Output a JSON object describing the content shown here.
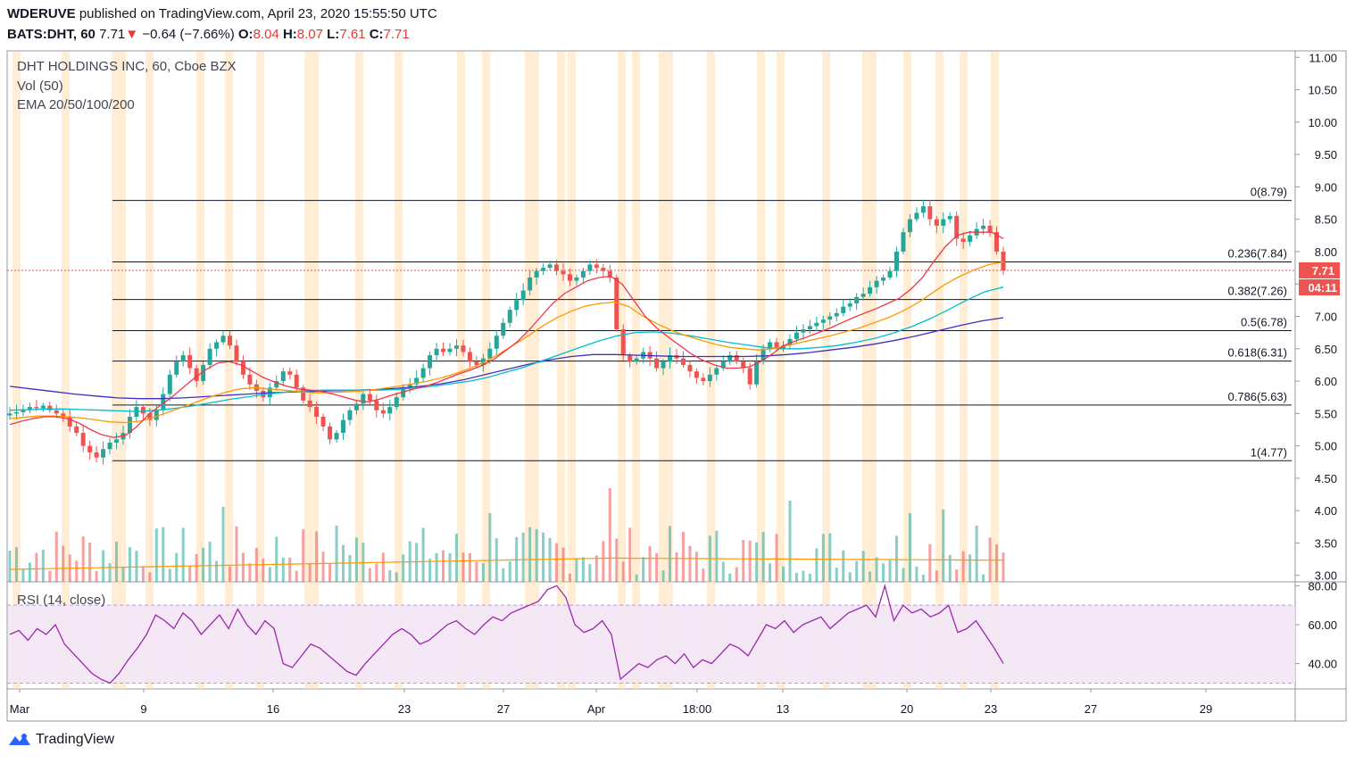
{
  "header": {
    "publisher": "WDERUVE",
    "published_text": "published on TradingView.com, April 23, 2020 15:55:50 UTC",
    "symbol": "BATS:DHT, 60",
    "last": "7.71",
    "change_arrow": "▼",
    "change": "−0.64 (−7.66%)",
    "o_label": "O:",
    "o_value": "8.04",
    "h_label": "H:",
    "h_value": "8.07",
    "l_label": "L:",
    "l_value": "7.61",
    "c_label": "C:",
    "c_value": "7.71"
  },
  "legend": {
    "title": "DHT HOLDINGS INC, 60, Cboe BZX",
    "volume": "Vol (50)",
    "ema": "EMA 20/50/100/200",
    "rsi": "RSI (14, close)"
  },
  "branding": {
    "name": "TradingView"
  },
  "colors": {
    "up": "#26a69a",
    "down": "#ef5350",
    "ema20": "#f23645",
    "ema50": "#ff9800",
    "ema100": "#00bcd4",
    "ema200": "#3f2fbf",
    "rsi": "#9c27b0",
    "rsi_band": "#f3e5f5",
    "session": "#ffe0b2",
    "last_price_tag": "#ef5350",
    "vol_ma": "#ff9800"
  },
  "chart_data": {
    "type": "candlestick",
    "title": "DHT HOLDINGS INC, 60, Cboe BZX",
    "price_axis": [
      "11.00",
      "10.50",
      "10.00",
      "9.50",
      "9.00",
      "8.50",
      "8.00",
      "7.50",
      "7.00",
      "6.50",
      "6.00",
      "5.50",
      "5.00",
      "4.50",
      "4.00",
      "3.50",
      "3.00"
    ],
    "price_ylim": [
      2.9,
      11.1
    ],
    "rsi_axis": [
      "80.00",
      "60.00",
      "40.00"
    ],
    "rsi_ylim": [
      27,
      82
    ],
    "rsi_band": [
      30,
      70
    ],
    "time_axis": [
      "Mar",
      "9",
      "16",
      "23",
      "27",
      "Apr",
      "18:00",
      "13",
      "20",
      "23",
      "27",
      "29"
    ],
    "last_price": "7.71",
    "countdown": "04:11",
    "fib_levels": [
      {
        "label": "0(8.79)",
        "value": 8.79
      },
      {
        "label": "0.236(7.84)",
        "value": 7.84
      },
      {
        "label": "0.382(7.26)",
        "value": 7.26
      },
      {
        "label": "0.5(6.78)",
        "value": 6.78
      },
      {
        "label": "0.618(6.31)",
        "value": 6.31
      },
      {
        "label": "0.786(5.63)",
        "value": 5.63
      },
      {
        "label": "1(4.77)",
        "value": 4.77
      }
    ],
    "price_path": [
      5.5,
      5.52,
      5.55,
      5.6,
      5.58,
      5.62,
      5.55,
      5.5,
      5.45,
      5.3,
      5.2,
      5.0,
      4.9,
      4.82,
      4.95,
      5.05,
      5.1,
      5.2,
      5.45,
      5.6,
      5.5,
      5.4,
      5.55,
      5.8,
      6.1,
      6.3,
      6.4,
      6.2,
      6.0,
      6.25,
      6.5,
      6.6,
      6.7,
      6.55,
      6.3,
      6.1,
      5.95,
      5.85,
      5.75,
      5.9,
      6.0,
      6.15,
      6.1,
      5.9,
      5.7,
      5.6,
      5.45,
      5.3,
      5.1,
      5.2,
      5.4,
      5.55,
      5.65,
      5.8,
      5.7,
      5.55,
      5.5,
      5.6,
      5.75,
      5.9,
      5.95,
      6.05,
      6.2,
      6.4,
      6.5,
      6.45,
      6.5,
      6.55,
      6.45,
      6.3,
      6.25,
      6.35,
      6.5,
      6.7,
      6.9,
      7.1,
      7.25,
      7.4,
      7.6,
      7.7,
      7.75,
      7.8,
      7.7,
      7.65,
      7.55,
      7.6,
      7.7,
      7.8,
      7.75,
      7.7,
      7.6,
      6.8,
      6.4,
      6.3,
      6.35,
      6.45,
      6.35,
      6.2,
      6.3,
      6.4,
      6.35,
      6.25,
      6.15,
      6.05,
      6.0,
      6.1,
      6.2,
      6.3,
      6.4,
      6.3,
      6.2,
      5.95,
      6.3,
      6.5,
      6.6,
      6.5,
      6.55,
      6.65,
      6.75,
      6.8,
      6.85,
      6.9,
      6.95,
      7.0,
      7.05,
      7.15,
      7.2,
      7.3,
      7.35,
      7.45,
      7.55,
      7.6,
      7.7,
      8.0,
      8.3,
      8.5,
      8.6,
      8.7,
      8.5,
      8.4,
      8.5,
      8.55,
      8.2,
      8.15,
      8.25,
      8.35,
      8.4,
      8.3,
      8.0,
      7.71
    ],
    "ema20": [
      5.33,
      5.38,
      5.42,
      5.45,
      5.45,
      5.42,
      5.35,
      5.25,
      5.17,
      5.13,
      5.16,
      5.3,
      5.48,
      5.62,
      5.75,
      5.9,
      6.05,
      6.18,
      6.28,
      6.3,
      6.25,
      6.15,
      6.05,
      5.98,
      5.92,
      5.88,
      5.86,
      5.84,
      5.8,
      5.75,
      5.7,
      5.68,
      5.72,
      5.78,
      5.83,
      5.88,
      5.92,
      5.98,
      6.05,
      6.12,
      6.18,
      6.25,
      6.35,
      6.48,
      6.62,
      6.8,
      7.0,
      7.2,
      7.35,
      7.45,
      7.55,
      7.6,
      7.62,
      7.5,
      7.25,
      7.0,
      6.82,
      6.68,
      6.55,
      6.42,
      6.32,
      6.25,
      6.2,
      6.2,
      6.22,
      6.3,
      6.42,
      6.55,
      6.62,
      6.68,
      6.75,
      6.82,
      6.9,
      6.98,
      7.05,
      7.12,
      7.2,
      7.28,
      7.42,
      7.6,
      7.85,
      8.08,
      8.25,
      8.3,
      8.3,
      8.3,
      8.2
    ],
    "ema50": [
      5.42,
      5.44,
      5.46,
      5.46,
      5.45,
      5.43,
      5.4,
      5.37,
      5.36,
      5.38,
      5.44,
      5.52,
      5.6,
      5.68,
      5.76,
      5.83,
      5.88,
      5.9,
      5.88,
      5.86,
      5.84,
      5.82,
      5.82,
      5.83,
      5.84,
      5.86,
      5.89,
      5.92,
      5.96,
      6.0,
      6.05,
      6.12,
      6.2,
      6.3,
      6.42,
      6.56,
      6.7,
      6.85,
      6.98,
      7.08,
      7.16,
      7.2,
      7.22,
      7.15,
      7.0,
      6.88,
      6.78,
      6.7,
      6.63,
      6.57,
      6.52,
      6.5,
      6.48,
      6.5,
      6.55,
      6.6,
      6.65,
      6.7,
      6.76,
      6.82,
      6.9,
      6.98,
      7.08,
      7.2,
      7.35,
      7.5,
      7.62,
      7.72,
      7.8,
      7.84
    ],
    "ema100": [
      5.55,
      5.56,
      5.57,
      5.57,
      5.56,
      5.55,
      5.54,
      5.53,
      5.55,
      5.58,
      5.62,
      5.67,
      5.72,
      5.76,
      5.8,
      5.83,
      5.85,
      5.86,
      5.86,
      5.86,
      5.86,
      5.87,
      5.89,
      5.92,
      5.96,
      6.0,
      6.06,
      6.14,
      6.22,
      6.32,
      6.42,
      6.52,
      6.62,
      6.7,
      6.75,
      6.76,
      6.74,
      6.7,
      6.65,
      6.6,
      6.56,
      6.52,
      6.5,
      6.5,
      6.52,
      6.55,
      6.6,
      6.66,
      6.74,
      6.84,
      6.96,
      7.1,
      7.25,
      7.38,
      7.45
    ],
    "ema200": [
      5.92,
      5.88,
      5.84,
      5.8,
      5.77,
      5.74,
      5.73,
      5.73,
      5.74,
      5.76,
      5.78,
      5.8,
      5.82,
      5.83,
      5.84,
      5.85,
      5.86,
      5.87,
      5.89,
      5.92,
      5.96,
      6.02,
      6.1,
      6.18,
      6.26,
      6.33,
      6.38,
      6.41,
      6.41,
      6.4,
      6.39,
      6.38,
      6.38,
      6.38,
      6.38,
      6.39,
      6.41,
      6.44,
      6.48,
      6.52,
      6.57,
      6.63,
      6.7,
      6.78,
      6.86,
      6.93,
      6.98
    ],
    "rsi": [
      55,
      57,
      52,
      58,
      55,
      60,
      50,
      45,
      40,
      35,
      32,
      30,
      35,
      42,
      48,
      55,
      65,
      62,
      58,
      66,
      62,
      55,
      60,
      65,
      58,
      68,
      60,
      55,
      62,
      58,
      40,
      38,
      44,
      50,
      48,
      44,
      40,
      36,
      34,
      40,
      45,
      50,
      55,
      58,
      55,
      50,
      52,
      56,
      60,
      62,
      58,
      55,
      60,
      64,
      62,
      66,
      68,
      70,
      72,
      78,
      80,
      74,
      60,
      56,
      58,
      62,
      55,
      32,
      36,
      40,
      38,
      42,
      44,
      40,
      45,
      38,
      42,
      40,
      45,
      50,
      48,
      44,
      52,
      60,
      58,
      62,
      56,
      60,
      62,
      64,
      58,
      62,
      66,
      68,
      70,
      64,
      80,
      62,
      70,
      66,
      68,
      64,
      66,
      70,
      56,
      58,
      62,
      55,
      48,
      40
    ],
    "volume_scale_note": "volume bars drawn in lower price pane"
  }
}
